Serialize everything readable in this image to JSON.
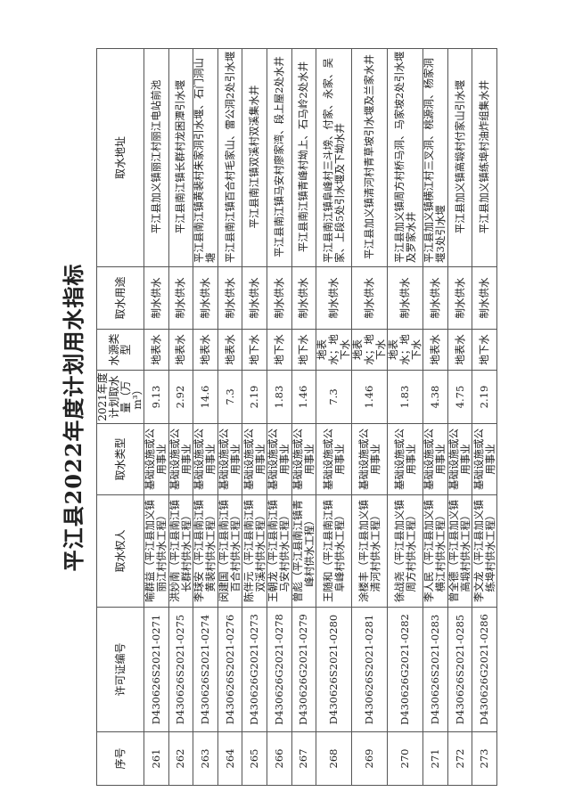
{
  "title": "平江县2022年度计划用水指标",
  "headers": [
    "序号",
    "许可证编号",
    "取水权人",
    "取水类型",
    "2021年度计划取水量（万m³）",
    "水源类型",
    "取水用途",
    "取水地址"
  ],
  "rows": [
    {
      "no": "261",
      "permit": "D430626S2021-0271",
      "holder": "喻群益（平江县加义镇丽江村供水工程）",
      "type": "基础设施或公用事业",
      "amount": "9.13",
      "source": "地表水",
      "use": "制水供水",
      "address": "平江县加义镇丽江村丽江电站前池"
    },
    {
      "no": "262",
      "permit": "D430626S2021-0275",
      "holder": "洪妙南（平江县南江镇长群村供水工程）",
      "type": "基础设施或公用事业",
      "amount": "2.92",
      "source": "地表水",
      "use": "制水供水",
      "address": "平江县南江镇长群村龙困潭引水堰"
    },
    {
      "no": "263",
      "permit": "D430626S2021-0274",
      "holder": "李球安（平江县南江镇黄裴村供水工程）",
      "type": "基础设施或公用事业",
      "amount": "14.6",
      "source": "地表水",
      "use": "制水供水",
      "address": "平江县南江镇黄裴村朱家洞引水堰、石门洞山塘"
    },
    {
      "no": "264",
      "permit": "D430626S2021-0276",
      "holder": "闵建国（平江县南江镇百合村供水工程）",
      "type": "基础设施或公用事业",
      "amount": "7.3",
      "source": "地表水",
      "use": "制水供水",
      "address": "平江县南江镇百合村毛家山、雷公洞2处引水堰"
    },
    {
      "no": "265",
      "permit": "D430626G2021-0273",
      "holder": "陈伴元（平江县南江镇双溪村供水工程）",
      "type": "基础设施或公用事业",
      "amount": "2.19",
      "source": "地下水",
      "use": "制水供水",
      "address": "平江县南江镇双溪村双溪集水井"
    },
    {
      "no": "266",
      "permit": "D430626G2021-0278",
      "holder": "王朝龙（平江县南江镇马安村供水工程）",
      "type": "基础设施或公用事业",
      "amount": "1.83",
      "source": "地下水",
      "use": "制水供水",
      "address": "平江县南江镇马安村廖家湾、段上屋2处水井"
    },
    {
      "no": "267",
      "permit": "D430626G2021-0279",
      "holder": "曾彪（平江县南江镇青峰村供水工程）",
      "type": "基础设施或公用事业",
      "amount": "1.46",
      "source": "地下水",
      "use": "制水供水",
      "address": "平江县南江镇青峰村坳上、石马岭2处水井"
    },
    {
      "no": "268",
      "permit": "D430626S2021-0280",
      "holder": "王随和（平江县南江镇阜峰村供水工程）",
      "type": "基础设施或公用事业",
      "amount": "7.3",
      "source": "地表水；地下水",
      "use": "制水供水",
      "address": "平江县南江镇阜峰村三斗塝、付家、永家、吴家、上段5处引水堰及下坳水井"
    },
    {
      "no": "269",
      "permit": "D430626S2021-0281",
      "holder": "涂楼丰（平江县加义镇清河村供水工程）",
      "type": "基础设施或公用事业",
      "amount": "1.46",
      "source": "地表水；地下水",
      "use": "制水供水",
      "address": "平江县加义镇清河村青草坡引水堰及兰家水井"
    },
    {
      "no": "270",
      "permit": "D430626G2021-0282",
      "holder": "徐战尧（平江县加义镇周方村供水工程）",
      "type": "基础设施或公用事业",
      "amount": "1.83",
      "source": "地表水；地下水",
      "use": "制水供水",
      "address": "平江县加义镇周方村桥马洞、马家坡2处引水堰及罗家水井"
    },
    {
      "no": "271",
      "permit": "D430626S2021-0283",
      "holder": "李人民（平江县加义镇横江村供水工程）",
      "type": "基础设施或公用事业",
      "amount": "4.38",
      "source": "地表水",
      "use": "制水供水",
      "address": "平江县加义镇横江村三叉洞、桃源洞、杨家洞堰3处引水堰"
    },
    {
      "no": "272",
      "permit": "D430626S2021-0285",
      "holder": "曾全德（平江县加义镇高塅村供水工程）",
      "type": "基础设施或公用事业",
      "amount": "4.75",
      "source": "地表水",
      "use": "制水供水",
      "address": "平江县加义镇高塅村付家山引水堰"
    },
    {
      "no": "273",
      "permit": "D430626G2021-0286",
      "holder": "李文龙（平江县加义镇练埠村供水工程）",
      "type": "基础设施或公用事业",
      "amount": "2.19",
      "source": "地下水",
      "use": "制水供水",
      "address": "平江县加义镇练埠村油炸组集水井"
    }
  ]
}
